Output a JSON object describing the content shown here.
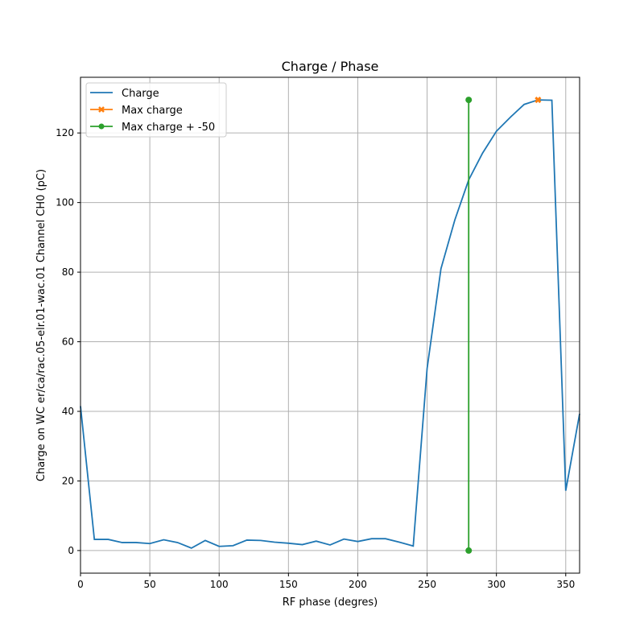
{
  "chart_data": {
    "type": "line",
    "title": "Charge / Phase",
    "xlabel": "RF phase (degres)",
    "ylabel": "Charge on WC er/ca/rac.05-elr.01-wac.01 Channel CH0 (pC)",
    "xlim": [
      0,
      360
    ],
    "ylim": [
      -6.5,
      136
    ],
    "xticks": [
      0,
      50,
      100,
      150,
      200,
      250,
      300,
      350
    ],
    "yticks": [
      0,
      20,
      40,
      60,
      80,
      100,
      120
    ],
    "grid": true,
    "legend_position": "top-left",
    "series": [
      {
        "name": "Charge",
        "color": "#1f77b4",
        "marker": "none",
        "x": [
          0,
          10,
          20,
          30,
          40,
          50,
          60,
          70,
          80,
          90,
          100,
          110,
          120,
          130,
          140,
          150,
          160,
          170,
          180,
          190,
          200,
          210,
          220,
          230,
          240,
          250,
          260,
          270,
          280,
          290,
          300,
          310,
          320,
          330,
          340,
          350,
          360
        ],
        "y": [
          41.5,
          3.2,
          3.2,
          2.3,
          2.3,
          2.0,
          3.1,
          2.3,
          0.7,
          2.9,
          1.2,
          1.4,
          3.0,
          2.9,
          2.4,
          2.1,
          1.7,
          2.7,
          1.6,
          3.3,
          2.6,
          3.4,
          3.4,
          2.4,
          1.3,
          52.3,
          81.0,
          95.0,
          106.5,
          114.2,
          120.5,
          124.5,
          128.2,
          129.5,
          129.4,
          17.2,
          39.3
        ]
      },
      {
        "name": "Max charge",
        "color": "#ff7f0e",
        "marker": "x",
        "x": [
          330
        ],
        "y": [
          129.5
        ]
      },
      {
        "name": "Max charge + -50",
        "color": "#2ca02c",
        "marker": "o",
        "x": [
          280,
          280
        ],
        "y": [
          0,
          129.5
        ]
      }
    ]
  }
}
